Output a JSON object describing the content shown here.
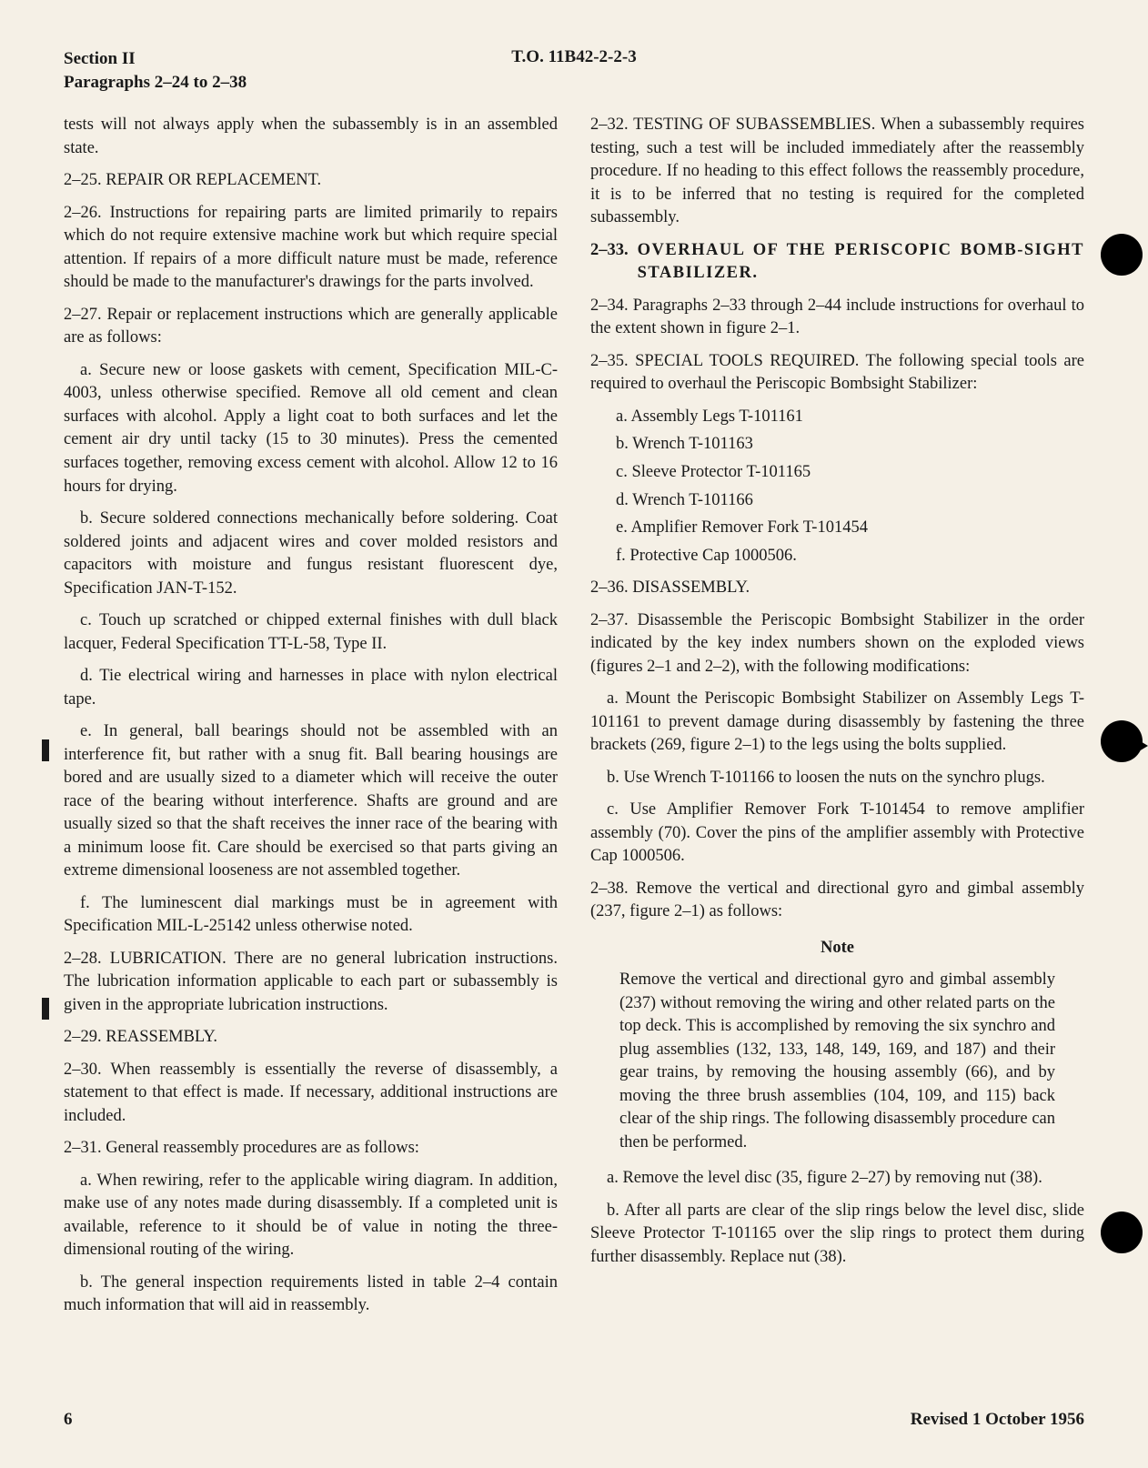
{
  "header": {
    "section": "Section II",
    "paragraphs": "Paragraphs 2–24 to 2–38",
    "to": "T.O. 11B42-2-2-3"
  },
  "left": {
    "opening": "tests will not always apply when the subassembly is in an assembled state.",
    "p225": "2–25. REPAIR OR REPLACEMENT.",
    "p226": "2–26. Instructions for repairing parts are limited primarily to repairs which do not require extensive machine work but which require special attention. If repairs of a more difficult nature must be made, reference should be made to the manufacturer's drawings for the parts involved.",
    "p227": "2–27. Repair or replacement instructions which are generally applicable are as follows:",
    "p227a": "a. Secure new or loose gaskets with cement, Specification MIL-C-4003, unless otherwise specified. Remove all old cement and clean surfaces with alcohol. Apply a light coat to both surfaces and let the cement air dry until tacky (15 to 30 minutes). Press the cemented surfaces together, removing excess cement with alcohol. Allow 12 to 16 hours for drying.",
    "p227b": "b. Secure soldered connections mechanically before soldering. Coat soldered joints and adjacent wires and cover molded resistors and capacitors with moisture and fungus resistant fluorescent dye, Specification JAN-T-152.",
    "p227c": "c. Touch up scratched or chipped external finishes with dull black lacquer, Federal Specification TT-L-58, Type II.",
    "p227d": "d. Tie electrical wiring and harnesses in place with nylon electrical tape.",
    "p227e": "e. In general, ball bearings should not be assembled with an interference fit, but rather with a snug fit. Ball bearing housings are bored and are usually sized to a diameter which will receive the outer race of the bearing without interference. Shafts are ground and are usually sized so that the shaft receives the inner race of the bearing with a minimum loose fit. Care should be exercised so that parts giving an extreme dimensional looseness are not assembled together.",
    "p227f": "f. The luminescent dial markings must be in agreement with Specification MIL-L-25142 unless otherwise noted.",
    "p228": "2–28. LUBRICATION. There are no general lubrication instructions. The lubrication information applicable to each part or subassembly is given in the appropriate lubrication instructions.",
    "p229": "2–29. REASSEMBLY.",
    "p230": "2–30. When reassembly is essentially the reverse of disassembly, a statement to that effect is made. If necessary, additional instructions are included.",
    "p231": "2–31. General reassembly procedures are as follows:",
    "p231a": "a. When rewiring, refer to the applicable wiring diagram. In addition, make use of any notes made during disassembly. If a completed unit is available, reference to it should be of value in noting the three-dimensional routing of the wiring.",
    "p231b": "b. The general inspection requirements listed in table 2–4 contain much information that will aid in reassembly."
  },
  "right": {
    "p232": "2–32. TESTING OF SUBASSEMBLIES. When a subassembly requires testing, such a test will be included immediately after the reassembly procedure. If no heading to this effect follows the reassembly procedure, it is to be inferred that no testing is required for the completed subassembly.",
    "p233num": "2–33.",
    "p233title": "OVERHAUL OF THE PERISCOPIC BOMB-SIGHT STABILIZER.",
    "p234": "2–34. Paragraphs 2–33 through 2–44 include instructions for overhaul to the extent shown in figure 2–1.",
    "p235": "2–35. SPECIAL TOOLS REQUIRED. The following special tools are required to overhaul the Periscopic Bombsight Stabilizer:",
    "tools": {
      "a": "a. Assembly Legs T-101161",
      "b": "b. Wrench T-101163",
      "c": "c. Sleeve Protector T-101165",
      "d": "d. Wrench T-101166",
      "e": "e. Amplifier Remover Fork T-101454",
      "f": "f. Protective Cap 1000506."
    },
    "p236": "2–36. DISASSEMBLY.",
    "p237": "2–37. Disassemble the Periscopic Bombsight Stabilizer in the order indicated by the key index numbers shown on the exploded views (figures 2–1 and 2–2), with the following modifications:",
    "p237a": "a. Mount the Periscopic Bombsight Stabilizer on Assembly Legs T-101161 to prevent damage during disassembly by fastening the three brackets (269, figure 2–1) to the legs using the bolts supplied.",
    "p237b": "b. Use Wrench T-101166 to loosen the nuts on the synchro plugs.",
    "p237c": "c. Use Amplifier Remover Fork T-101454 to remove amplifier assembly (70). Cover the pins of the amplifier assembly with Protective Cap 1000506.",
    "p238": "2–38. Remove the vertical and directional gyro and gimbal assembly (237, figure 2–1) as follows:",
    "note_title": "Note",
    "note_body": "Remove the vertical and directional gyro and gimbal assembly (237) without removing the wiring and other related parts on the top deck. This is accomplished by removing the six synchro and plug assemblies (132, 133, 148, 149, 169, and 187) and their gear trains, by removing the housing assembly (66), and by moving the three brush assemblies (104, 109, and 115) back clear of the ship rings. The following disassembly procedure can then be performed.",
    "p238a": "a. Remove the level disc (35, figure 2–27) by removing nut (38).",
    "p238b": "b. After all parts are clear of the slip rings below the level disc, slide Sleeve Protector T-101165 over the slip rings to protect them during further disassembly. Replace nut (38)."
  },
  "footer": {
    "page": "6",
    "revised": "Revised 1 October 1956"
  }
}
